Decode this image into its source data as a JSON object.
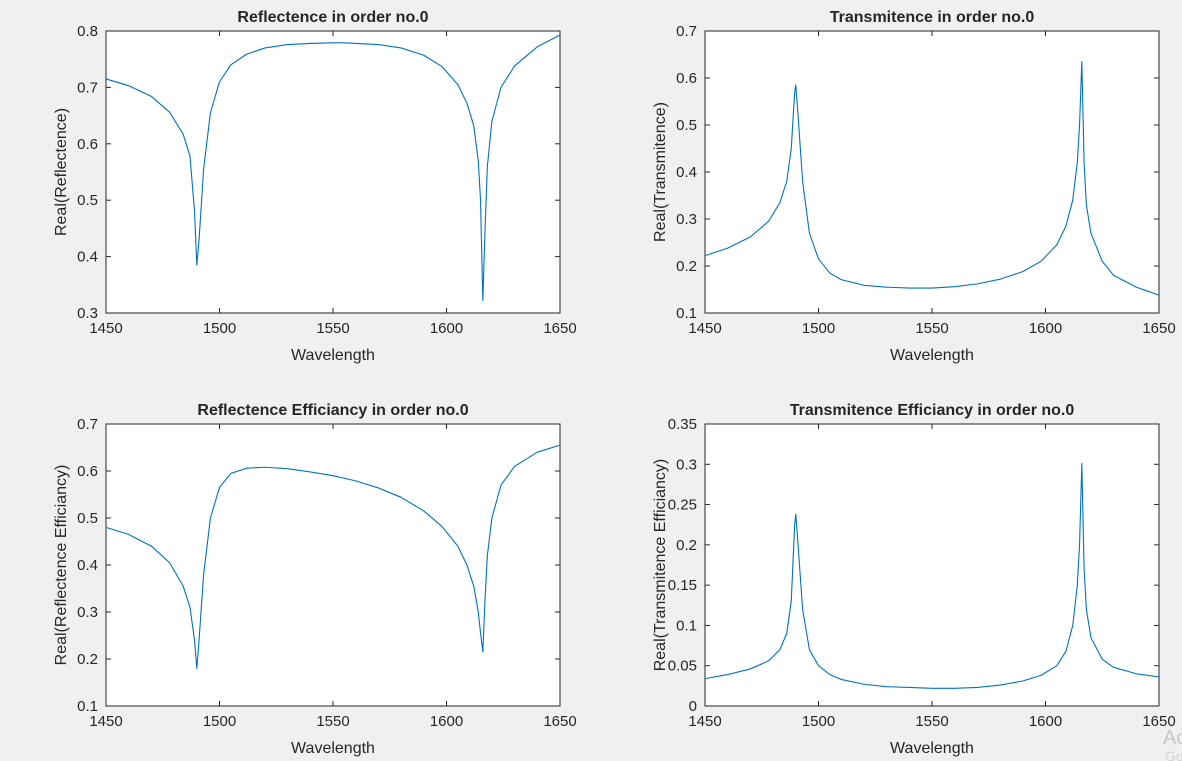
{
  "figure": {
    "background": "#f0f0f0",
    "line_color": "#0072bd"
  },
  "watermark": {
    "line1": "Ac",
    "line2": "Go"
  },
  "chart_data": [
    {
      "type": "line",
      "title": "Reflectence in order no.0",
      "xlabel": "Wavelength",
      "ylabel": "Real(Reflectence)",
      "xlim": [
        1450,
        1650
      ],
      "ylim": [
        0.3,
        0.8
      ],
      "xticks": [
        1450,
        1500,
        1550,
        1600,
        1650
      ],
      "yticks": [
        0.3,
        0.4,
        0.5,
        0.6,
        0.7,
        0.8
      ],
      "grid": false,
      "series": [
        {
          "x": [
            1450,
            1460,
            1470,
            1478,
            1484,
            1487,
            1489,
            1490,
            1491,
            1493,
            1496,
            1500,
            1505,
            1512,
            1520,
            1530,
            1540,
            1550,
            1555,
            1560,
            1570,
            1580,
            1590,
            1598,
            1605,
            1609,
            1612,
            1614,
            1615,
            1616,
            1617,
            1618,
            1620,
            1624,
            1630,
            1640,
            1650
          ],
          "y": [
            0.715,
            0.703,
            0.684,
            0.656,
            0.617,
            0.578,
            0.48,
            0.385,
            0.43,
            0.555,
            0.655,
            0.71,
            0.74,
            0.759,
            0.77,
            0.776,
            0.778,
            0.779,
            0.779,
            0.778,
            0.776,
            0.77,
            0.757,
            0.737,
            0.705,
            0.672,
            0.632,
            0.57,
            0.5,
            0.322,
            0.45,
            0.56,
            0.64,
            0.7,
            0.738,
            0.772,
            0.793
          ]
        }
      ]
    },
    {
      "type": "line",
      "title": "Transmitence in order no.0",
      "xlabel": "Wavelength",
      "ylabel": "Real(Transmitence)",
      "xlim": [
        1450,
        1650
      ],
      "ylim": [
        0.1,
        0.7
      ],
      "xticks": [
        1450,
        1500,
        1550,
        1600,
        1650
      ],
      "yticks": [
        0.1,
        0.2,
        0.3,
        0.4,
        0.5,
        0.6,
        0.7
      ],
      "grid": false,
      "series": [
        {
          "x": [
            1450,
            1460,
            1470,
            1478,
            1483,
            1486,
            1488,
            1489.5,
            1490,
            1491,
            1493,
            1496,
            1500,
            1505,
            1510,
            1520,
            1530,
            1540,
            1550,
            1560,
            1570,
            1580,
            1590,
            1598,
            1605,
            1609,
            1612,
            1614,
            1615,
            1616,
            1617,
            1618,
            1620,
            1625,
            1630,
            1640,
            1650
          ],
          "y": [
            0.222,
            0.238,
            0.262,
            0.295,
            0.335,
            0.38,
            0.45,
            0.57,
            0.585,
            0.52,
            0.38,
            0.27,
            0.215,
            0.185,
            0.171,
            0.159,
            0.155,
            0.153,
            0.153,
            0.156,
            0.162,
            0.172,
            0.188,
            0.21,
            0.245,
            0.285,
            0.34,
            0.42,
            0.5,
            0.635,
            0.42,
            0.33,
            0.27,
            0.21,
            0.18,
            0.155,
            0.138
          ]
        }
      ]
    },
    {
      "type": "line",
      "title": "Reflectence Efficiancy in order no.0",
      "xlabel": "Wavelength",
      "ylabel": "Real(Reflectence Efficiancy)",
      "xlim": [
        1450,
        1650
      ],
      "ylim": [
        0.1,
        0.7
      ],
      "xticks": [
        1450,
        1500,
        1550,
        1600,
        1650
      ],
      "yticks": [
        0.1,
        0.2,
        0.3,
        0.4,
        0.5,
        0.6,
        0.7
      ],
      "grid": false,
      "series": [
        {
          "x": [
            1450,
            1460,
            1470,
            1478,
            1484,
            1487,
            1489,
            1490,
            1491,
            1493,
            1496,
            1500,
            1505,
            1512,
            1520,
            1530,
            1540,
            1550,
            1560,
            1570,
            1580,
            1590,
            1598,
            1605,
            1609,
            1612,
            1614,
            1615,
            1616,
            1617,
            1618,
            1620,
            1624,
            1630,
            1640,
            1650
          ],
          "y": [
            0.48,
            0.465,
            0.44,
            0.405,
            0.355,
            0.31,
            0.24,
            0.18,
            0.24,
            0.38,
            0.5,
            0.565,
            0.595,
            0.606,
            0.608,
            0.605,
            0.598,
            0.59,
            0.579,
            0.564,
            0.544,
            0.515,
            0.482,
            0.44,
            0.4,
            0.355,
            0.3,
            0.255,
            0.215,
            0.33,
            0.42,
            0.5,
            0.57,
            0.61,
            0.64,
            0.655
          ]
        }
      ]
    },
    {
      "type": "line",
      "title": "Transmitence Efficiancy in order no.0",
      "xlabel": "Wavelength",
      "ylabel": "Real(Transmitence Efficiancy)",
      "xlim": [
        1450,
        1650
      ],
      "ylim": [
        0,
        0.35
      ],
      "xticks": [
        1450,
        1500,
        1550,
        1600,
        1650
      ],
      "yticks": [
        0,
        0.05,
        0.1,
        0.15,
        0.2,
        0.25,
        0.3,
        0.35
      ],
      "grid": false,
      "series": [
        {
          "x": [
            1450,
            1460,
            1470,
            1478,
            1483,
            1486,
            1488,
            1489.5,
            1490,
            1491,
            1493,
            1496,
            1500,
            1505,
            1510,
            1520,
            1530,
            1540,
            1550,
            1560,
            1570,
            1580,
            1590,
            1598,
            1605,
            1609,
            1612,
            1614,
            1615,
            1616,
            1617,
            1618,
            1620,
            1625,
            1630,
            1640,
            1650
          ],
          "y": [
            0.034,
            0.039,
            0.046,
            0.056,
            0.07,
            0.09,
            0.13,
            0.225,
            0.238,
            0.2,
            0.12,
            0.07,
            0.05,
            0.039,
            0.033,
            0.027,
            0.024,
            0.023,
            0.022,
            0.022,
            0.023,
            0.026,
            0.031,
            0.038,
            0.05,
            0.068,
            0.1,
            0.15,
            0.2,
            0.301,
            0.17,
            0.12,
            0.085,
            0.058,
            0.048,
            0.04,
            0.036
          ]
        }
      ]
    }
  ]
}
